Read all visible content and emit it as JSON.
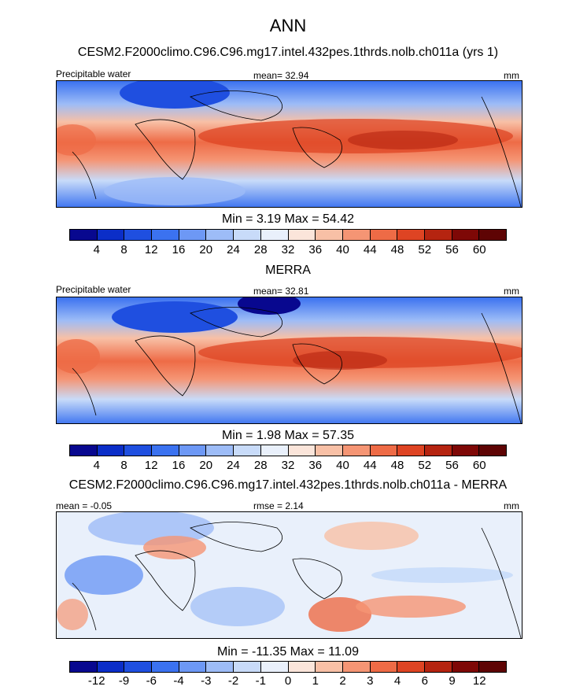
{
  "figure": {
    "title": "ANN",
    "units": "mm",
    "panels": [
      {
        "title": "CESM2.F2000climo.C96.C96.mg17.intel.432pes.1thrds.nolb.ch011a (yrs 1)",
        "left_label": "Precipitable water",
        "center_label": "mean=  32.94",
        "right_label": "mm",
        "minmax": "Min =   3.19 Max =  54.42",
        "colorbar": "absolute"
      },
      {
        "title": "MERRA",
        "left_label": "Precipitable water",
        "center_label": "mean=  32.81",
        "right_label": "mm",
        "minmax": "Min =   1.98 Max =  57.35",
        "colorbar": "absolute"
      },
      {
        "title": "CESM2.F2000climo.C96.C96.mg17.intel.432pes.1thrds.nolb.ch011a - MERRA",
        "left_label": "mean =  -0.05",
        "center_label": "rmse =   2.14",
        "right_label": "mm",
        "minmax": "Min = -11.35 Max =  11.09",
        "colorbar": "diff"
      }
    ]
  },
  "colorbars": {
    "absolute": {
      "levels": [
        "4",
        "8",
        "12",
        "16",
        "20",
        "24",
        "28",
        "32",
        "36",
        "40",
        "44",
        "48",
        "52",
        "56",
        "60"
      ],
      "colors": [
        "#08088f",
        "#0b2ec8",
        "#1f4fe0",
        "#3b72f0",
        "#6d98f5",
        "#9dbcf7",
        "#c8dbf9",
        "#e9f0fb",
        "#fbe5da",
        "#f8c0a6",
        "#f59574",
        "#ee6b46",
        "#de4423",
        "#b52410",
        "#7e0806",
        "#5e0404"
      ]
    },
    "diff": {
      "levels": [
        "-12",
        "-9",
        "-6",
        "-4",
        "-3",
        "-2",
        "-1",
        "0",
        "1",
        "2",
        "3",
        "4",
        "6",
        "9",
        "12"
      ],
      "colors": [
        "#08088f",
        "#0b2ec8",
        "#1f4fe0",
        "#3b72f0",
        "#6d98f5",
        "#9dbcf7",
        "#c8dbf9",
        "#e9f0fb",
        "#fbe5da",
        "#f8c0a6",
        "#f59574",
        "#ee6b46",
        "#de4423",
        "#b52410",
        "#7e0806",
        "#5e0404"
      ]
    }
  }
}
